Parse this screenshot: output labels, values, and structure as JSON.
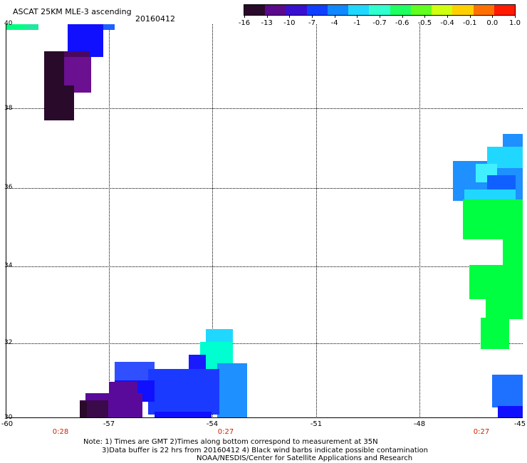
{
  "header": {
    "title": "ASCAT 25KM MLE-3 ascending",
    "date": "20160412"
  },
  "colorbar": {
    "labels": [
      "-16",
      "-13",
      "-10",
      "-7",
      "-4",
      "-1",
      "-0.7",
      "-0.6",
      "-0.5",
      "-0.4",
      "-0.1",
      "0.0",
      "1.0"
    ],
    "colors": [
      "#2a0a2a",
      "#5a0a8a",
      "#3a10d0",
      "#1040ff",
      "#1088ff",
      "#20d8ff",
      "#30ffd0",
      "#20ff60",
      "#60ff20",
      "#d0ff10",
      "#ffd000",
      "#ff7000",
      "#ff1a00"
    ]
  },
  "axes": {
    "y_labels": [
      "40",
      "38",
      "36",
      "34",
      "32",
      "30"
    ],
    "x_labels": [
      "-60",
      "-57",
      "-54",
      "-51",
      "-48",
      "-45"
    ],
    "time_labels": [
      "0:28",
      "0:27",
      "0:27"
    ]
  },
  "notes": {
    "line1": "Note: 1) Times are GMT 2)Times along bottom correspond to measurement at 35N",
    "line2": "3)Data buffer is 22 hrs from 20160412 4) Black wind barbs indicate possible contamination",
    "line3": "NOAA/NESDIS/Center for Satellite Applications and Research"
  },
  "swaths": {
    "legend_chip_colors": [
      "#00ff80",
      "#2080ff"
    ],
    "north_west_colors": [
      "#1010ff",
      "#2a0a2a",
      "#4a0860",
      "#6a1090"
    ],
    "east_colors": [
      "#1e90ff",
      "#20d8ff",
      "#00ff40",
      "#1060ff"
    ],
    "south_colors": [
      "#1a1aff",
      "#3050ff",
      "#00ffd0",
      "#5a0a9a",
      "#2a0a2a"
    ]
  }
}
